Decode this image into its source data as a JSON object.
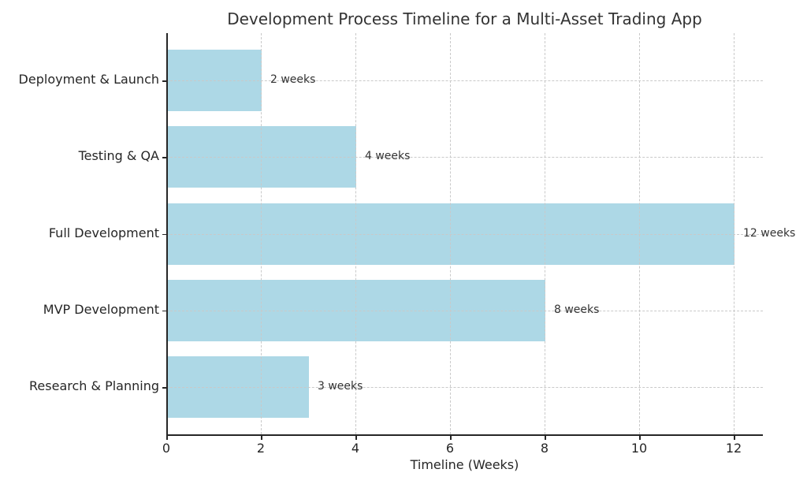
{
  "chart_data": {
    "type": "bar",
    "orientation": "horizontal",
    "title": "Development Process Timeline for a Multi-Asset Trading App",
    "xlabel": "Timeline (Weeks)",
    "ylabel": "",
    "categories": [
      "Deployment & Launch",
      "Testing & QA",
      "Full Development",
      "MVP Development",
      "Research & Planning"
    ],
    "values": [
      2,
      4,
      12,
      8,
      3
    ],
    "value_labels": [
      "2 weeks",
      "4 weeks",
      "12 weeks",
      "8 weeks",
      "3 weeks"
    ],
    "x_ticks": [
      0,
      2,
      4,
      6,
      8,
      10,
      12
    ],
    "xlim": [
      0,
      12.6
    ],
    "grid": true,
    "grid_style": "dashed",
    "legend": false,
    "bar_color": "#ADD8E6",
    "grid_color": "#C9C9C9",
    "axis_color": "#262626",
    "text_color": "#333333",
    "background": "#FFFFFF"
  }
}
